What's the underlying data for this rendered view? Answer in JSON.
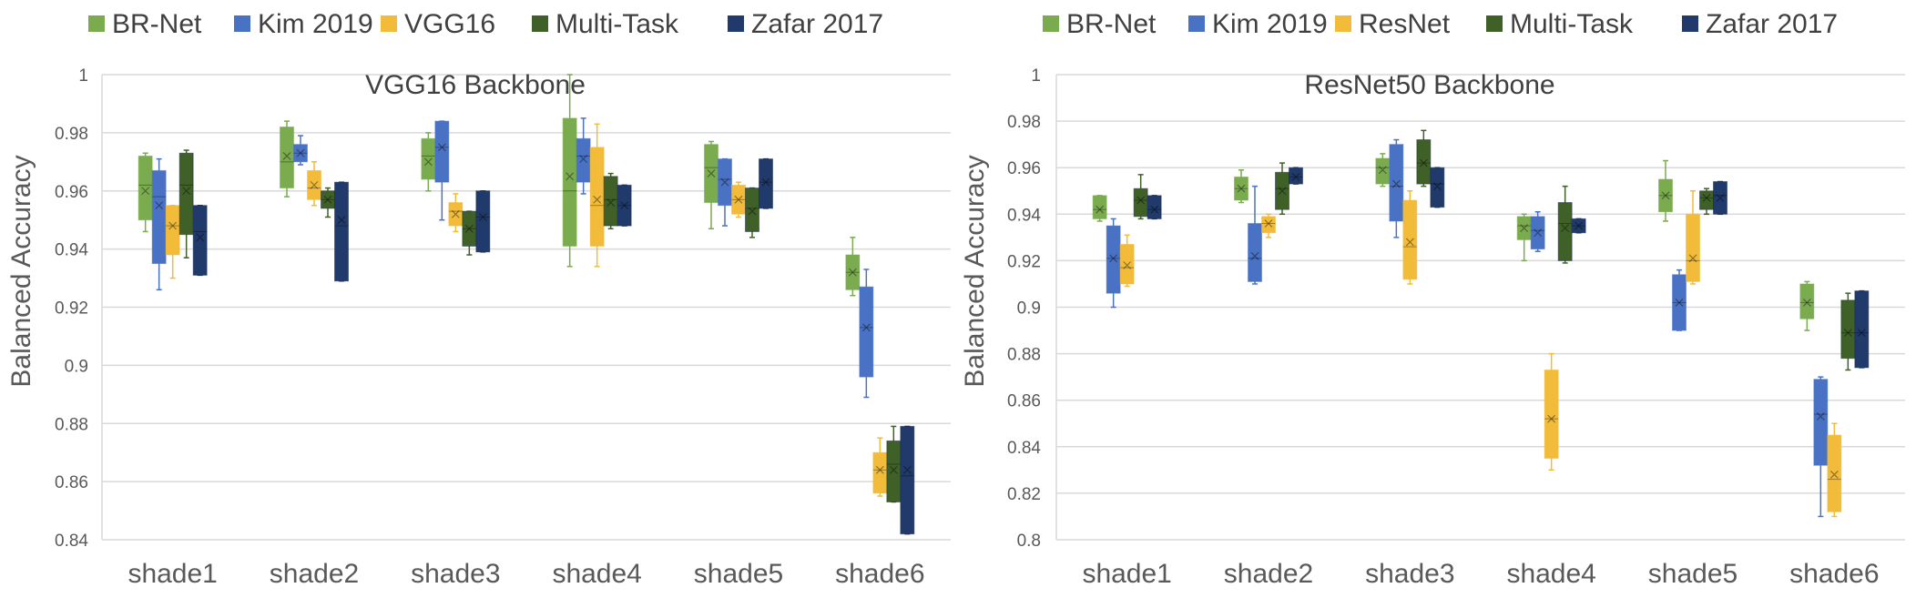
{
  "colors": {
    "BR-Net": "#7aab4f",
    "Kim 2019": "#4a72c4",
    "VGG16": "#f2bb3a",
    "ResNet": "#f2bb3a",
    "Multi-Task": "#3f6128",
    "Zafar 2017": "#203a6b"
  },
  "chart_data": [
    {
      "type": "box",
      "title": "VGG16 Backbone",
      "ylabel": "Balanced Accuracy",
      "xlabel": "",
      "ylim": [
        0.84,
        1
      ],
      "yticks": [
        0.84,
        0.86,
        0.88,
        0.9,
        0.92,
        0.94,
        0.96,
        0.98,
        1
      ],
      "ytick_labels": [
        "0.84",
        "0.86",
        "0.88",
        "0.9",
        "0.92",
        "0.94",
        "0.96",
        "0.98",
        "1"
      ],
      "legend": [
        "BR-Net",
        "Kim 2019",
        "VGG16",
        "Multi-Task",
        "Zafar 2017"
      ],
      "legend_position": "top",
      "categories": [
        "shade1",
        "shade2",
        "shade3",
        "shade4",
        "shade5",
        "shade6"
      ],
      "series": [
        {
          "name": "BR-Net",
          "boxes": [
            {
              "min": 0.946,
              "q1": 0.95,
              "median": 0.962,
              "q3": 0.972,
              "max": 0.973,
              "mean": 0.96
            },
            {
              "min": 0.958,
              "q1": 0.961,
              "median": 0.97,
              "q3": 0.982,
              "max": 0.984,
              "mean": 0.972
            },
            {
              "min": 0.96,
              "q1": 0.964,
              "median": 0.972,
              "q3": 0.978,
              "max": 0.98,
              "mean": 0.97
            },
            {
              "min": 0.934,
              "q1": 0.941,
              "median": 0.96,
              "q3": 0.985,
              "max": 1.0,
              "mean": 0.965
            },
            {
              "min": 0.947,
              "q1": 0.956,
              "median": 0.968,
              "q3": 0.976,
              "max": 0.977,
              "mean": 0.966
            },
            {
              "min": 0.924,
              "q1": 0.926,
              "median": 0.932,
              "q3": 0.938,
              "max": 0.944,
              "mean": 0.932
            }
          ]
        },
        {
          "name": "Kim 2019",
          "boxes": [
            {
              "min": 0.926,
              "q1": 0.935,
              "median": 0.958,
              "q3": 0.967,
              "max": 0.971,
              "mean": 0.955
            },
            {
              "min": 0.969,
              "q1": 0.97,
              "median": 0.973,
              "q3": 0.976,
              "max": 0.979,
              "mean": 0.973
            },
            {
              "min": 0.95,
              "q1": 0.963,
              "median": 0.975,
              "q3": 0.984,
              "max": 0.984,
              "mean": 0.975
            },
            {
              "min": 0.959,
              "q1": 0.963,
              "median": 0.972,
              "q3": 0.978,
              "max": 0.985,
              "mean": 0.971
            },
            {
              "min": 0.948,
              "q1": 0.955,
              "median": 0.964,
              "q3": 0.971,
              "max": 0.971,
              "mean": 0.963
            },
            {
              "min": 0.889,
              "q1": 0.896,
              "median": 0.913,
              "q3": 0.927,
              "max": 0.933,
              "mean": 0.913
            }
          ]
        },
        {
          "name": "VGG16",
          "boxes": [
            {
              "min": 0.93,
              "q1": 0.938,
              "median": 0.948,
              "q3": 0.955,
              "max": 0.955,
              "mean": 0.948
            },
            {
              "min": 0.955,
              "q1": 0.957,
              "median": 0.961,
              "q3": 0.967,
              "max": 0.97,
              "mean": 0.962
            },
            {
              "min": 0.946,
              "q1": 0.948,
              "median": 0.953,
              "q3": 0.956,
              "max": 0.959,
              "mean": 0.952
            },
            {
              "min": 0.934,
              "q1": 0.941,
              "median": 0.955,
              "q3": 0.975,
              "max": 0.983,
              "mean": 0.957
            },
            {
              "min": 0.951,
              "q1": 0.952,
              "median": 0.957,
              "q3": 0.962,
              "max": 0.963,
              "mean": 0.957
            },
            {
              "min": 0.855,
              "q1": 0.856,
              "median": 0.864,
              "q3": 0.87,
              "max": 0.875,
              "mean": 0.864
            }
          ]
        },
        {
          "name": "Multi-Task",
          "boxes": [
            {
              "min": 0.937,
              "q1": 0.945,
              "median": 0.962,
              "q3": 0.973,
              "max": 0.974,
              "mean": 0.96
            },
            {
              "min": 0.951,
              "q1": 0.954,
              "median": 0.957,
              "q3": 0.96,
              "max": 0.961,
              "mean": 0.957
            },
            {
              "min": 0.938,
              "q1": 0.941,
              "median": 0.947,
              "q3": 0.953,
              "max": 0.953,
              "mean": 0.947
            },
            {
              "min": 0.947,
              "q1": 0.948,
              "median": 0.957,
              "q3": 0.965,
              "max": 0.966,
              "mean": 0.956
            },
            {
              "min": 0.944,
              "q1": 0.946,
              "median": 0.954,
              "q3": 0.961,
              "max": 0.961,
              "mean": 0.953
            },
            {
              "min": 0.853,
              "q1": 0.853,
              "median": 0.866,
              "q3": 0.874,
              "max": 0.879,
              "mean": 0.864
            }
          ]
        },
        {
          "name": "Zafar 2017",
          "boxes": [
            {
              "min": 0.931,
              "q1": 0.931,
              "median": 0.946,
              "q3": 0.955,
              "max": 0.955,
              "mean": 0.944
            },
            {
              "min": 0.929,
              "q1": 0.929,
              "median": 0.948,
              "q3": 0.963,
              "max": 0.963,
              "mean": 0.95
            },
            {
              "min": 0.939,
              "q1": 0.939,
              "median": 0.951,
              "q3": 0.96,
              "max": 0.96,
              "mean": 0.951
            },
            {
              "min": 0.948,
              "q1": 0.948,
              "median": 0.955,
              "q3": 0.962,
              "max": 0.962,
              "mean": 0.955
            },
            {
              "min": 0.954,
              "q1": 0.954,
              "median": 0.963,
              "q3": 0.971,
              "max": 0.971,
              "mean": 0.963
            },
            {
              "min": 0.842,
              "q1": 0.842,
              "median": 0.862,
              "q3": 0.879,
              "max": 0.879,
              "mean": 0.864
            }
          ]
        }
      ]
    },
    {
      "type": "box",
      "title": "ResNet50 Backbone",
      "ylabel": "Balanced Accuracy",
      "xlabel": "",
      "ylim": [
        0.8,
        1
      ],
      "yticks": [
        0.8,
        0.82,
        0.84,
        0.86,
        0.88,
        0.9,
        0.92,
        0.94,
        0.96,
        0.98,
        1
      ],
      "ytick_labels": [
        "0.8",
        "0.82",
        "0.84",
        "0.86",
        "0.88",
        "0.9",
        "0.92",
        "0.94",
        "0.96",
        "0.98",
        "1"
      ],
      "legend": [
        "BR-Net",
        "Kim 2019",
        "ResNet",
        "Multi-Task",
        "Zafar 2017"
      ],
      "legend_position": "top",
      "categories": [
        "shade1",
        "shade2",
        "shade3",
        "shade4",
        "shade5",
        "shade6"
      ],
      "series": [
        {
          "name": "BR-Net",
          "boxes": [
            {
              "min": 0.937,
              "q1": 0.938,
              "median": 0.942,
              "q3": 0.948,
              "max": 0.948,
              "mean": 0.942
            },
            {
              "min": 0.945,
              "q1": 0.946,
              "median": 0.951,
              "q3": 0.956,
              "max": 0.959,
              "mean": 0.951
            },
            {
              "min": 0.952,
              "q1": 0.953,
              "median": 0.96,
              "q3": 0.964,
              "max": 0.966,
              "mean": 0.959
            },
            {
              "min": 0.92,
              "q1": 0.929,
              "median": 0.935,
              "q3": 0.939,
              "max": 0.94,
              "mean": 0.934
            },
            {
              "min": 0.937,
              "q1": 0.941,
              "median": 0.948,
              "q3": 0.955,
              "max": 0.963,
              "mean": 0.948
            },
            {
              "min": 0.89,
              "q1": 0.895,
              "median": 0.902,
              "q3": 0.91,
              "max": 0.911,
              "mean": 0.902
            }
          ]
        },
        {
          "name": "Kim 2019",
          "boxes": [
            {
              "min": 0.9,
              "q1": 0.906,
              "median": 0.921,
              "q3": 0.935,
              "max": 0.938,
              "mean": 0.921
            },
            {
              "min": 0.91,
              "q1": 0.911,
              "median": 0.921,
              "q3": 0.936,
              "max": 0.952,
              "mean": 0.922
            },
            {
              "min": 0.93,
              "q1": 0.937,
              "median": 0.952,
              "q3": 0.97,
              "max": 0.972,
              "mean": 0.953
            },
            {
              "min": 0.924,
              "q1": 0.925,
              "median": 0.933,
              "q3": 0.939,
              "max": 0.941,
              "mean": 0.932
            },
            {
              "min": 0.89,
              "q1": 0.89,
              "median": 0.902,
              "q3": 0.914,
              "max": 0.916,
              "mean": 0.902
            },
            {
              "min": 0.81,
              "q1": 0.832,
              "median": 0.854,
              "q3": 0.869,
              "max": 0.87,
              "mean": 0.853
            }
          ]
        },
        {
          "name": "ResNet",
          "boxes": [
            {
              "min": 0.909,
              "q1": 0.91,
              "median": 0.917,
              "q3": 0.927,
              "max": 0.931,
              "mean": 0.918
            },
            {
              "min": 0.93,
              "q1": 0.932,
              "median": 0.936,
              "q3": 0.939,
              "max": 0.94,
              "mean": 0.936
            },
            {
              "min": 0.91,
              "q1": 0.912,
              "median": 0.926,
              "q3": 0.946,
              "max": 0.95,
              "mean": 0.928
            },
            {
              "min": 0.83,
              "q1": 0.835,
              "median": 0.852,
              "q3": 0.873,
              "max": 0.88,
              "mean": 0.852
            },
            {
              "min": 0.91,
              "q1": 0.911,
              "median": 0.92,
              "q3": 0.94,
              "max": 0.95,
              "mean": 0.921
            },
            {
              "min": 0.81,
              "q1": 0.812,
              "median": 0.826,
              "q3": 0.845,
              "max": 0.85,
              "mean": 0.828
            }
          ]
        },
        {
          "name": "Multi-Task",
          "boxes": [
            {
              "min": 0.938,
              "q1": 0.939,
              "median": 0.946,
              "q3": 0.951,
              "max": 0.957,
              "mean": 0.946
            },
            {
              "min": 0.94,
              "q1": 0.942,
              "median": 0.951,
              "q3": 0.958,
              "max": 0.962,
              "mean": 0.95
            },
            {
              "min": 0.952,
              "q1": 0.953,
              "median": 0.962,
              "q3": 0.972,
              "max": 0.976,
              "mean": 0.962
            },
            {
              "min": 0.919,
              "q1": 0.92,
              "median": 0.936,
              "q3": 0.945,
              "max": 0.952,
              "mean": 0.934
            },
            {
              "min": 0.94,
              "q1": 0.942,
              "median": 0.947,
              "q3": 0.95,
              "max": 0.951,
              "mean": 0.947
            },
            {
              "min": 0.873,
              "q1": 0.878,
              "median": 0.889,
              "q3": 0.903,
              "max": 0.906,
              "mean": 0.889
            }
          ]
        },
        {
          "name": "Zafar 2017",
          "boxes": [
            {
              "min": 0.938,
              "q1": 0.938,
              "median": 0.942,
              "q3": 0.948,
              "max": 0.948,
              "mean": 0.942
            },
            {
              "min": 0.953,
              "q1": 0.953,
              "median": 0.956,
              "q3": 0.96,
              "max": 0.96,
              "mean": 0.956
            },
            {
              "min": 0.943,
              "q1": 0.943,
              "median": 0.953,
              "q3": 0.96,
              "max": 0.96,
              "mean": 0.952
            },
            {
              "min": 0.932,
              "q1": 0.932,
              "median": 0.935,
              "q3": 0.938,
              "max": 0.938,
              "mean": 0.935
            },
            {
              "min": 0.94,
              "q1": 0.94,
              "median": 0.948,
              "q3": 0.954,
              "max": 0.954,
              "mean": 0.947
            },
            {
              "min": 0.874,
              "q1": 0.874,
              "median": 0.889,
              "q3": 0.907,
              "max": 0.907,
              "mean": 0.889
            }
          ]
        }
      ]
    }
  ]
}
